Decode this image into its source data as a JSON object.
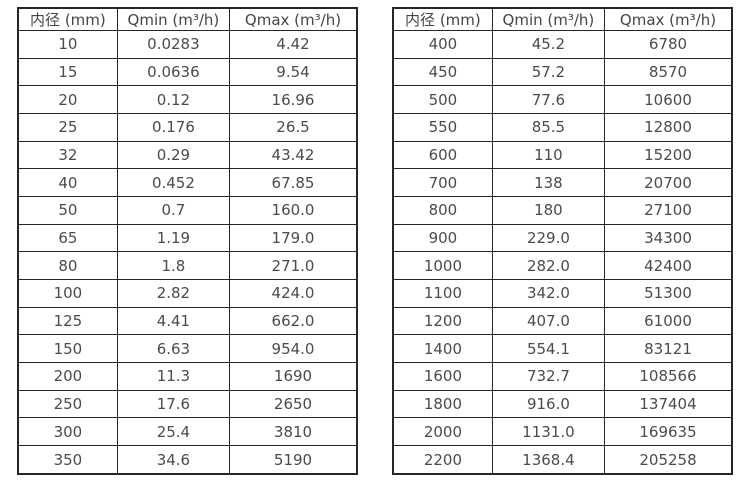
{
  "colors": {
    "background": "#ffffff",
    "border": "#262626",
    "text": "#4b4b4b"
  },
  "tables": [
    {
      "name": "small-diameters",
      "headers": [
        "内径 (mm)",
        "Qmin (m³/h)",
        "Qmax (m³/h)"
      ],
      "rows": [
        [
          "10",
          "0.0283",
          "4.42"
        ],
        [
          "15",
          "0.0636",
          "9.54"
        ],
        [
          "20",
          "0.12",
          "16.96"
        ],
        [
          "25",
          "0.176",
          "26.5"
        ],
        [
          "32",
          "0.29",
          "43.42"
        ],
        [
          "40",
          "0.452",
          "67.85"
        ],
        [
          "50",
          "0.7",
          "160.0"
        ],
        [
          "65",
          "1.19",
          "179.0"
        ],
        [
          "80",
          "1.8",
          "271.0"
        ],
        [
          "100",
          "2.82",
          "424.0"
        ],
        [
          "125",
          "4.41",
          "662.0"
        ],
        [
          "150",
          "6.63",
          "954.0"
        ],
        [
          "200",
          "11.3",
          "1690"
        ],
        [
          "250",
          "17.6",
          "2650"
        ],
        [
          "300",
          "25.4",
          "3810"
        ],
        [
          "350",
          "34.6",
          "5190"
        ]
      ]
    },
    {
      "name": "large-diameters",
      "headers": [
        "内径 (mm)",
        "Qmin (m³/h)",
        "Qmax (m³/h)"
      ],
      "rows": [
        [
          "400",
          "45.2",
          "6780"
        ],
        [
          "450",
          "57.2",
          "8570"
        ],
        [
          "500",
          "77.6",
          "10600"
        ],
        [
          "550",
          "85.5",
          "12800"
        ],
        [
          "600",
          "110",
          "15200"
        ],
        [
          "700",
          "138",
          "20700"
        ],
        [
          "800",
          "180",
          "27100"
        ],
        [
          "900",
          "229.0",
          "34300"
        ],
        [
          "1000",
          "282.0",
          "42400"
        ],
        [
          "1100",
          "342.0",
          "51300"
        ],
        [
          "1200",
          "407.0",
          "61000"
        ],
        [
          "1400",
          "554.1",
          "83121"
        ],
        [
          "1600",
          "732.7",
          "108566"
        ],
        [
          "1800",
          "916.0",
          "137404"
        ],
        [
          "2000",
          "1131.0",
          "169635"
        ],
        [
          "2200",
          "1368.4",
          "205258"
        ]
      ]
    }
  ]
}
